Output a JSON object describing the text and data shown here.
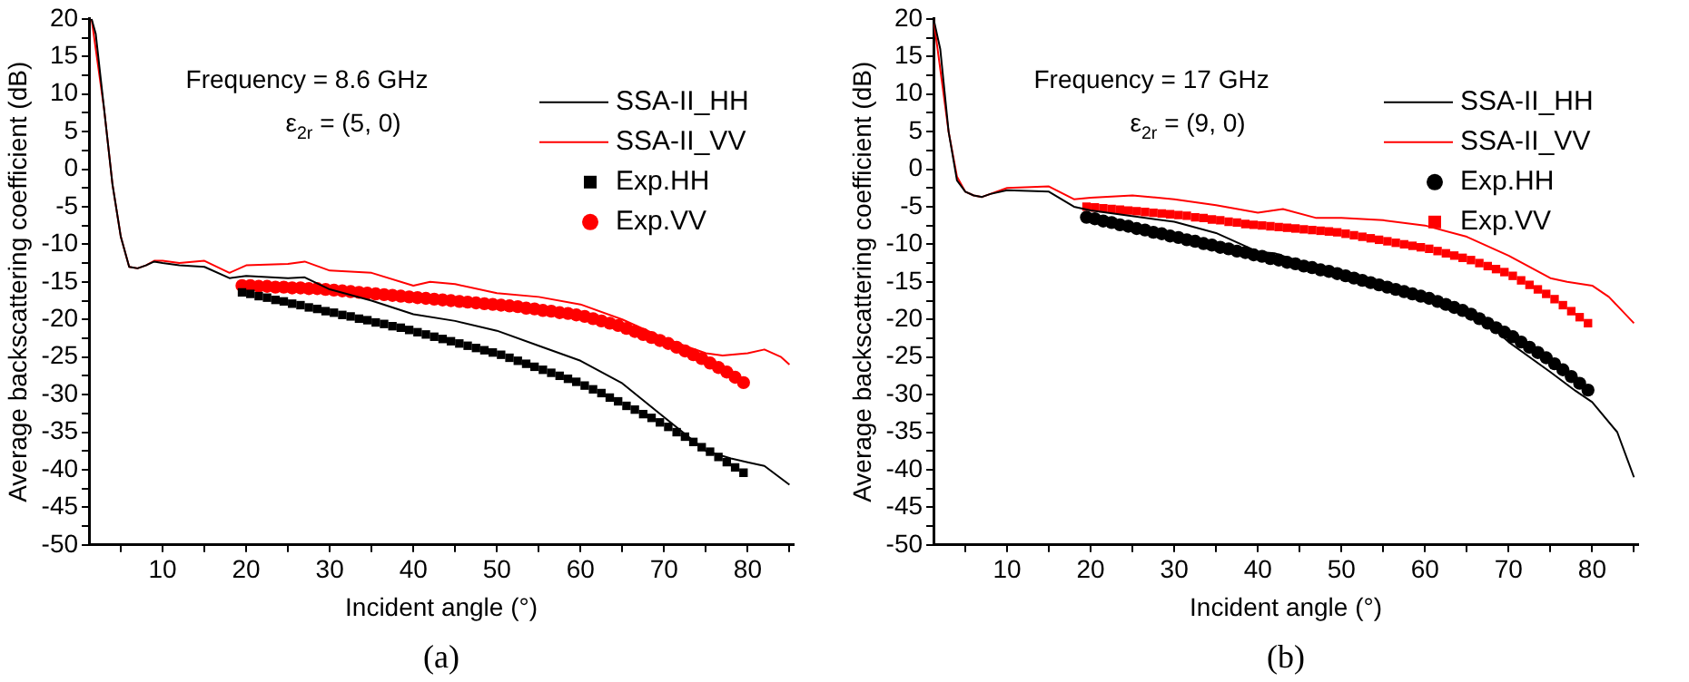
{
  "chart_data": [
    {
      "type": "scatter",
      "xlabel": "Incident angle (°)",
      "ylabel": "Average backscattering coefficient (dB)",
      "annotations": [
        "Frequency = 8.6 GHz",
        "ε$_{2r}$ = (5, 0)",
        "(a)"
      ],
      "x": [
        19.5,
        20.5,
        21.5,
        22.5,
        23.5,
        24.5,
        25.5,
        26.5,
        27.5,
        28.5,
        29.5,
        30.5,
        31.5,
        32.5,
        33.5,
        34.5,
        35.5,
        36.5,
        37.5,
        38.5,
        39.5,
        40.5,
        41.5,
        42.5,
        43.5,
        44.5,
        45.5,
        46.5,
        47.5,
        48.5,
        49.5,
        50.5,
        51.5,
        52.5,
        53.5,
        54.5,
        55.5,
        56.5,
        57.5,
        58.5,
        59.5,
        60.5,
        61.5,
        62.5,
        63.5,
        64.5,
        65.5,
        66.5,
        67.5,
        68.5,
        69.5,
        70.5,
        71.5,
        72.5,
        73.5,
        74.5,
        75.5,
        76.5,
        77.5,
        78.5,
        79.5
      ],
      "xlim": [
        1.2,
        85.5
      ],
      "xticks": [
        {
          "value": 5,
          "label": null
        },
        10,
        {
          "value": 15,
          "label": null
        },
        20,
        {
          "value": 25,
          "label": null
        },
        30,
        {
          "value": 35,
          "label": null
        },
        40,
        {
          "value": 45,
          "label": null
        },
        50,
        {
          "value": 55,
          "label": null
        },
        60,
        {
          "value": 65,
          "label": null
        },
        70,
        {
          "value": 75,
          "label": null
        },
        80,
        {
          "value": 85,
          "label": null
        }
      ],
      "ylim": [
        -50,
        20
      ],
      "yticks": [
        -50,
        {
          "value": -47.5,
          "label": null
        },
        -45,
        {
          "value": -42.5,
          "label": null
        },
        -40,
        {
          "value": -37.5,
          "label": null
        },
        -35,
        {
          "value": -32.5,
          "label": null
        },
        -30,
        {
          "value": -27.5,
          "label": null
        },
        -25,
        {
          "value": -22.5,
          "label": null
        },
        -20,
        {
          "value": -17.5,
          "label": null
        },
        -15,
        {
          "value": -12.5,
          "label": null
        },
        -10,
        {
          "value": -7.5,
          "label": null
        },
        -5,
        {
          "value": -2.5,
          "label": null
        },
        0,
        {
          "value": 2.5,
          "label": null
        },
        5,
        {
          "value": 7.5,
          "label": null
        },
        10,
        {
          "value": 12.5,
          "label": null
        },
        15,
        {
          "value": 17.5,
          "label": null
        },
        20
      ],
      "legend": "top right",
      "grid": false,
      "series": [
        {
          "name": "SSA-II_HH",
          "type": "line",
          "marker": "none",
          "color": "#000000",
          "x": [
            1.5,
            2,
            3,
            4,
            5,
            6,
            7,
            8,
            9,
            10,
            12,
            15,
            18,
            20,
            25,
            27,
            30,
            35,
            40,
            45,
            50,
            55,
            60,
            65,
            70,
            75,
            78,
            80,
            82,
            85
          ],
          "values": [
            20,
            18,
            8,
            -2,
            -9,
            -13,
            -13.2,
            -12.8,
            -12.3,
            -12.5,
            -12.8,
            -13,
            -14.5,
            -14.2,
            -14.5,
            -14.4,
            -16,
            -17.5,
            -19.3,
            -20.2,
            -21.5,
            -23.5,
            -25.5,
            -28.5,
            -33,
            -37.5,
            -38.5,
            -39,
            -39.5,
            -42
          ]
        },
        {
          "name": "SSA-II_VV",
          "type": "line",
          "marker": "none",
          "color": "#ff0000",
          "x": [
            1.5,
            3,
            4,
            5,
            6,
            7,
            8,
            9,
            10,
            12,
            15,
            18,
            20,
            25,
            27,
            30,
            35,
            40,
            42,
            45,
            50,
            55,
            60,
            65,
            70,
            75,
            77,
            80,
            82,
            84,
            85
          ],
          "values": [
            20,
            8,
            -2,
            -9,
            -13,
            -13.2,
            -12.8,
            -12.2,
            -12.2,
            -12.5,
            -12.2,
            -13.8,
            -12.8,
            -12.6,
            -12.3,
            -13.5,
            -13.8,
            -15.5,
            -15,
            -15.3,
            -16.5,
            -17,
            -18,
            -20,
            -22.5,
            -24.5,
            -24.8,
            -24.5,
            -24,
            -25,
            -26
          ]
        },
        {
          "name": "Exp.HH",
          "marker": "square",
          "color": "#000000",
          "values": [
            -16.4,
            -16.6,
            -16.9,
            -17.1,
            -17.4,
            -17.6,
            -17.9,
            -18.1,
            -18.4,
            -18.6,
            -18.9,
            -19.1,
            -19.4,
            -19.6,
            -19.9,
            -20.1,
            -20.4,
            -20.6,
            -20.9,
            -21.1,
            -21.4,
            -21.7,
            -22.0,
            -22.3,
            -22.6,
            -22.9,
            -23.2,
            -23.5,
            -23.8,
            -24.1,
            -24.4,
            -24.7,
            -25.1,
            -25.5,
            -25.9,
            -26.3,
            -26.7,
            -27.1,
            -27.5,
            -27.9,
            -28.3,
            -28.8,
            -29.3,
            -29.8,
            -30.4,
            -30.9,
            -31.5,
            -32.0,
            -32.6,
            -33.1,
            -33.7,
            -34.3,
            -35.0,
            -35.6,
            -36.3,
            -37.0,
            -37.6,
            -38.3,
            -39.0,
            -39.7,
            -40.4
          ]
        },
        {
          "name": "Exp.VV",
          "marker": "circle",
          "color": "#ff0000",
          "values": [
            -15.5,
            -15.5,
            -15.6,
            -15.6,
            -15.7,
            -15.7,
            -15.8,
            -15.8,
            -15.9,
            -15.9,
            -16.0,
            -16.1,
            -16.2,
            -16.3,
            -16.4,
            -16.5,
            -16.6,
            -16.7,
            -16.8,
            -16.9,
            -17.0,
            -17.1,
            -17.2,
            -17.3,
            -17.4,
            -17.5,
            -17.6,
            -17.7,
            -17.8,
            -17.9,
            -18.0,
            -18.1,
            -18.2,
            -18.3,
            -18.5,
            -18.6,
            -18.8,
            -18.9,
            -19.1,
            -19.2,
            -19.4,
            -19.6,
            -19.9,
            -20.2,
            -20.5,
            -20.8,
            -21.2,
            -21.6,
            -22.0,
            -22.4,
            -22.8,
            -23.2,
            -23.7,
            -24.2,
            -24.7,
            -25.2,
            -25.8,
            -26.4,
            -27.0,
            -27.7,
            -28.4
          ]
        }
      ]
    },
    {
      "type": "scatter",
      "xlabel": "Incident angle (°)",
      "ylabel": "Average backscattering coefficient (dB)",
      "annotations": [
        "Frequency = 17 GHz",
        "ε$_{2r}$ = (9, 0)",
        "(b)"
      ],
      "x": [
        19.5,
        20.5,
        21.5,
        22.5,
        23.5,
        24.5,
        25.5,
        26.5,
        27.5,
        28.5,
        29.5,
        30.5,
        31.5,
        32.5,
        33.5,
        34.5,
        35.5,
        36.5,
        37.5,
        38.5,
        39.5,
        40.5,
        41.5,
        42.5,
        43.5,
        44.5,
        45.5,
        46.5,
        47.5,
        48.5,
        49.5,
        50.5,
        51.5,
        52.5,
        53.5,
        54.5,
        55.5,
        56.5,
        57.5,
        58.5,
        59.5,
        60.5,
        61.5,
        62.5,
        63.5,
        64.5,
        65.5,
        66.5,
        67.5,
        68.5,
        69.5,
        70.5,
        71.5,
        72.5,
        73.5,
        74.5,
        75.5,
        76.5,
        77.5,
        78.5,
        79.5
      ],
      "xlim": [
        1.2,
        85.5
      ],
      "xticks": [
        {
          "value": 5,
          "label": null
        },
        10,
        {
          "value": 15,
          "label": null
        },
        20,
        {
          "value": 25,
          "label": null
        },
        30,
        {
          "value": 35,
          "label": null
        },
        40,
        {
          "value": 45,
          "label": null
        },
        50,
        {
          "value": 55,
          "label": null
        },
        60,
        {
          "value": 65,
          "label": null
        },
        70,
        {
          "value": 75,
          "label": null
        },
        80,
        {
          "value": 85,
          "label": null
        }
      ],
      "ylim": [
        -50,
        20
      ],
      "yticks": [
        -50,
        {
          "value": -47.5,
          "label": null
        },
        -45,
        {
          "value": -42.5,
          "label": null
        },
        -40,
        {
          "value": -37.5,
          "label": null
        },
        -35,
        {
          "value": -32.5,
          "label": null
        },
        -30,
        {
          "value": -27.5,
          "label": null
        },
        -25,
        {
          "value": -22.5,
          "label": null
        },
        -20,
        {
          "value": -17.5,
          "label": null
        },
        -15,
        {
          "value": -12.5,
          "label": null
        },
        -10,
        {
          "value": -7.5,
          "label": null
        },
        -5,
        {
          "value": -2.5,
          "label": null
        },
        0,
        {
          "value": 2.5,
          "label": null
        },
        5,
        {
          "value": 7.5,
          "label": null
        },
        10,
        {
          "value": 12.5,
          "label": null
        },
        15,
        {
          "value": 17.5,
          "label": null
        },
        20
      ],
      "legend": "top right",
      "grid": false,
      "series": [
        {
          "name": "SSA-II_HH",
          "type": "line",
          "marker": "none",
          "color": "#000000",
          "x": [
            1.2,
            2,
            3,
            4,
            5,
            6,
            7,
            8,
            10,
            15,
            18,
            20,
            30,
            35,
            40,
            42,
            45,
            50,
            55,
            60,
            65,
            68,
            70,
            75,
            78,
            80,
            83,
            85
          ],
          "values": [
            20,
            16,
            5,
            -1.5,
            -3,
            -3.5,
            -3.7,
            -3.3,
            -2.8,
            -3,
            -5,
            -5.5,
            -7,
            -8.5,
            -11,
            -11.2,
            -12.3,
            -13.5,
            -15,
            -17,
            -19,
            -21,
            -23,
            -27,
            -29.5,
            -31,
            -35,
            -41
          ]
        },
        {
          "name": "SSA-II_VV",
          "type": "line",
          "marker": "none",
          "color": "#ff0000",
          "x": [
            1.2,
            3,
            4,
            5,
            6,
            7,
            10,
            15,
            18,
            20,
            25,
            30,
            35,
            40,
            43,
            47,
            50,
            55,
            60,
            65,
            70,
            75,
            77,
            80,
            82,
            85
          ],
          "values": [
            20,
            5,
            -1,
            -3,
            -3.5,
            -3.7,
            -2.5,
            -2.3,
            -4,
            -3.8,
            -3.5,
            -4,
            -4.8,
            -5.8,
            -5.3,
            -6.5,
            -6.5,
            -6.8,
            -7.5,
            -9,
            -11.5,
            -14.5,
            -15,
            -15.5,
            -17,
            -20.5
          ]
        },
        {
          "name": "Exp.HH",
          "marker": "circle",
          "color": "#000000",
          "values": [
            -6.4,
            -6.6,
            -6.9,
            -7.1,
            -7.4,
            -7.6,
            -7.9,
            -8.1,
            -8.4,
            -8.6,
            -8.9,
            -9.1,
            -9.4,
            -9.6,
            -9.9,
            -10.1,
            -10.4,
            -10.6,
            -10.9,
            -11.1,
            -11.4,
            -11.6,
            -11.9,
            -12.1,
            -12.4,
            -12.6,
            -12.9,
            -13.1,
            -13.4,
            -13.6,
            -13.9,
            -14.2,
            -14.5,
            -14.8,
            -15.1,
            -15.4,
            -15.7,
            -16.0,
            -16.3,
            -16.6,
            -16.9,
            -17.2,
            -17.6,
            -18.0,
            -18.4,
            -18.8,
            -19.3,
            -19.9,
            -20.5,
            -21.1,
            -21.7,
            -22.3,
            -23.0,
            -23.7,
            -24.4,
            -25.1,
            -25.9,
            -26.7,
            -27.6,
            -28.5,
            -29.4
          ]
        },
        {
          "name": "Exp.VV",
          "marker": "square",
          "color": "#ff0000",
          "values": [
            -5.0,
            -5.1,
            -5.2,
            -5.3,
            -5.4,
            -5.5,
            -5.6,
            -5.7,
            -5.8,
            -5.9,
            -6.0,
            -6.1,
            -6.2,
            -6.4,
            -6.5,
            -6.7,
            -6.8,
            -7.0,
            -7.1,
            -7.3,
            -7.4,
            -7.5,
            -7.6,
            -7.7,
            -7.8,
            -7.9,
            -8.0,
            -8.1,
            -8.2,
            -8.3,
            -8.4,
            -8.6,
            -8.8,
            -9.0,
            -9.2,
            -9.4,
            -9.6,
            -9.8,
            -10.0,
            -10.2,
            -10.4,
            -10.6,
            -10.9,
            -11.2,
            -11.5,
            -11.8,
            -12.1,
            -12.5,
            -12.9,
            -13.3,
            -13.7,
            -14.2,
            -14.8,
            -15.4,
            -16.0,
            -16.6,
            -17.3,
            -18.1,
            -18.9,
            -19.7,
            -20.5
          ]
        }
      ]
    }
  ]
}
